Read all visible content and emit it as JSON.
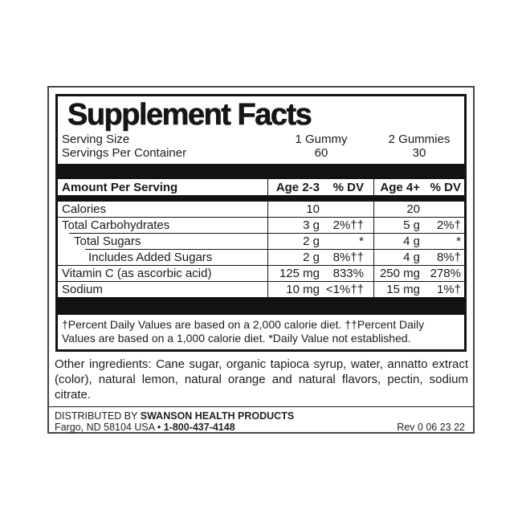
{
  "label": {
    "title": "Supplement Facts",
    "serving": {
      "size_label": "Serving Size",
      "size_v1": "1 Gummy",
      "size_v2": "2 Gummies",
      "container_label": "Servings Per Container",
      "container_v1": "60",
      "container_v2": "30"
    },
    "table": {
      "header": {
        "amount": "Amount Per Serving",
        "age1": "Age 2-3",
        "dv1": "% DV",
        "age2": "Age 4+",
        "dv2": "% DV"
      },
      "rows": [
        {
          "label": "Calories",
          "a1": "10",
          "d1": "",
          "a2": "20",
          "d2": ""
        },
        {
          "label": "Total Carbohydrates",
          "a1": "3 g",
          "d1": "2%††",
          "a2": "5 g",
          "d2": "2%†"
        },
        {
          "label": "Total Sugars",
          "a1": "2 g",
          "d1": "*",
          "a2": "4 g",
          "d2": "*"
        },
        {
          "label": "Includes Added Sugars",
          "a1": "2 g",
          "d1": "8%††",
          "a2": "4 g",
          "d2": "8%†"
        },
        {
          "label": "Vitamin C (as ascorbic acid)",
          "a1": "125 mg",
          "d1": "833%",
          "a2": "250 mg",
          "d2": "278%"
        },
        {
          "label": "Sodium",
          "a1": "10 mg",
          "d1": "<1%††",
          "a2": "15 mg",
          "d2": "1%†"
        }
      ]
    },
    "footnote": "†Percent Daily Values are based on a 2,000 calorie diet. ††Percent Daily Values are based on a 1,000 calorie diet. *Daily Value not established.",
    "other_ingredients": "Other ingredients: Cane sugar, organic tapioca syrup, water, annatto extract (color), natural lemon, natural orange and natural flavors, pectin, sodium citrate.",
    "distributor": {
      "prefix": "DISTRIBUTED BY ",
      "company": "SWANSON HEALTH PRODUCTS",
      "address": "Fargo, ND 58104 USA • ",
      "phone": "1-800-437-4148",
      "rev": "Rev 0 06 23 22"
    },
    "colors": {
      "outer_border": "#4e423c",
      "panel_black": "#121212",
      "background": "#ffffff"
    }
  }
}
